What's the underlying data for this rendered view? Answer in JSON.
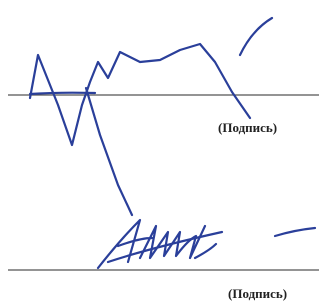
{
  "signatures": [
    {
      "label": "(Подпись)"
    },
    {
      "label": "(Подпись)"
    }
  ]
}
